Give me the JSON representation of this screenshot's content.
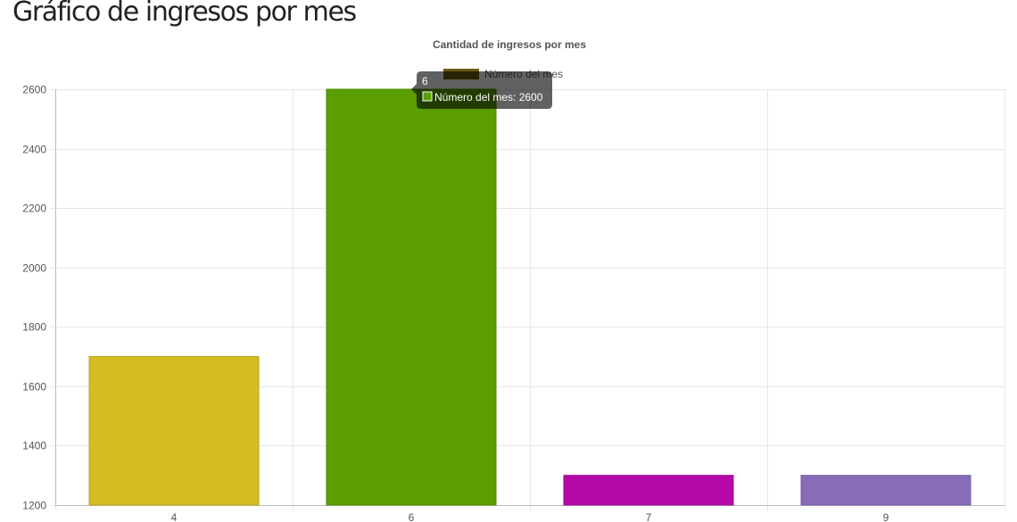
{
  "page": {
    "title": "Gráfico de ingresos por mes"
  },
  "colors": {
    "grid": "#e6e6e6",
    "axis": "#bbbbbb",
    "text": "#555555",
    "tooltip_bg": "#000000"
  },
  "chart_data": {
    "type": "bar",
    "title": "Cantidad de ingresos por mes",
    "xlabel": "",
    "ylabel": "",
    "categories": [
      "4",
      "6",
      "7",
      "9"
    ],
    "series": [
      {
        "name": "Número del mes",
        "values": [
          1700,
          2600,
          1300,
          1300
        ],
        "colors": [
          "#d4bc21",
          "#5a9e00",
          "#b50aa8",
          "#876cb8"
        ],
        "border_colors": [
          "#b8a31c",
          "#4e8a00",
          "#9d0992",
          "#755ea0"
        ]
      }
    ],
    "ylim": [
      1200,
      2600
    ],
    "yticks": [
      1200,
      1400,
      1600,
      1800,
      2000,
      2200,
      2400,
      2600
    ],
    "grid": true,
    "legend": {
      "position": "top",
      "entries": [
        "Número del mes"
      ],
      "swatch_color": "#6b5a14"
    },
    "tooltip": {
      "visible": true,
      "category": "6",
      "label": "Número del mes: 2600",
      "swatch_color": "#5a9e00"
    }
  }
}
